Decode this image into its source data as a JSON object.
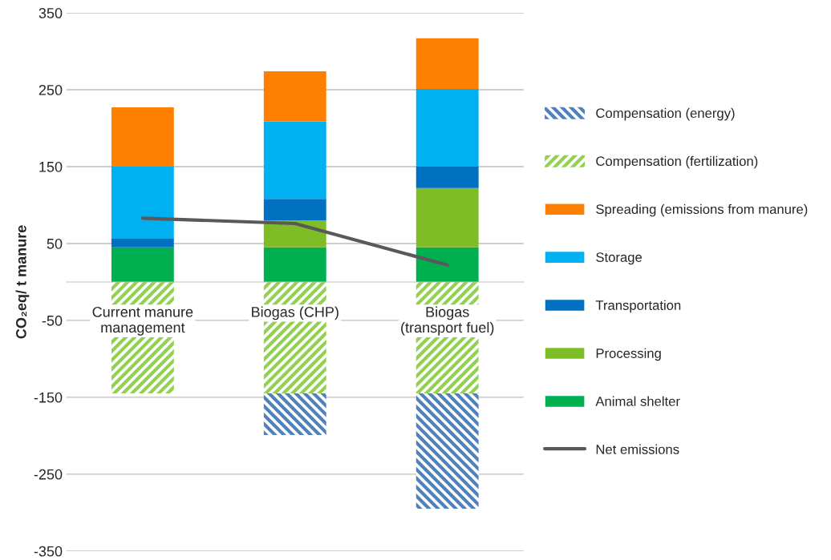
{
  "chart_data": {
    "type": "bar",
    "stacked": true,
    "ylabel": "CO₂eq/ t manure",
    "categories": [
      "Current manure management",
      "Biogas (CHP)",
      "Biogas (transport fuel)"
    ],
    "series": [
      {
        "name": "Animal shelter",
        "color": "#00b050",
        "values": [
          45,
          45,
          45
        ]
      },
      {
        "name": "Processing",
        "color": "#7ebd26",
        "values": [
          0,
          35,
          77
        ]
      },
      {
        "name": "Transportation",
        "color": "#0070c0",
        "values": [
          12,
          28,
          28
        ]
      },
      {
        "name": "Storage",
        "color": "#00b0f0",
        "values": [
          93,
          101,
          101
        ]
      },
      {
        "name": "Spreading (emissions from manure)",
        "color": "#ff8000",
        "values": [
          77,
          65,
          66
        ]
      },
      {
        "name": "Compensation (fertilization)",
        "color": "#92d050",
        "values": [
          -145,
          -145,
          -145
        ]
      },
      {
        "name": "Compensation (energy)",
        "color": "#4f81bd",
        "values": [
          0,
          -54,
          -150
        ]
      },
      {
        "name": "Net emissions",
        "type": "line",
        "color": "#595959",
        "values": [
          83,
          76,
          22
        ]
      }
    ],
    "ylim": [
      -350,
      350
    ],
    "yticks": [
      -350,
      -250,
      -150,
      -50,
      50,
      150,
      250,
      350
    ],
    "grid": "y",
    "legend": "right"
  }
}
